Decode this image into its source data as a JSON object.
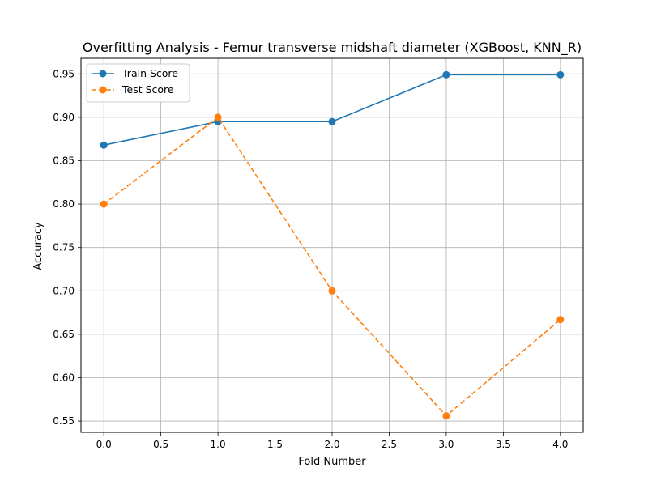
{
  "chart_data": {
    "type": "line",
    "title": "Overfitting Analysis - Femur transverse midshaft diameter (XGBoost, KNN_R)",
    "xlabel": "Fold Number",
    "ylabel": "Accuracy",
    "xlim": [
      -0.2,
      4.2
    ],
    "ylim": [
      0.537,
      0.968
    ],
    "x_ticks": [
      0.0,
      0.5,
      1.0,
      1.5,
      2.0,
      2.5,
      3.0,
      3.5,
      4.0
    ],
    "x_tick_labels": [
      "0.0",
      "0.5",
      "1.0",
      "1.5",
      "2.0",
      "2.5",
      "3.0",
      "3.5",
      "4.0"
    ],
    "y_ticks": [
      0.55,
      0.6,
      0.65,
      0.7,
      0.75,
      0.8,
      0.85,
      0.9,
      0.95
    ],
    "y_tick_labels": [
      "0.55",
      "0.60",
      "0.65",
      "0.70",
      "0.75",
      "0.80",
      "0.85",
      "0.90",
      "0.95"
    ],
    "grid": true,
    "legend_position": "top-left",
    "x": [
      0,
      1,
      2,
      3,
      4
    ],
    "series": [
      {
        "name": "Train Score",
        "values": [
          0.868,
          0.895,
          0.895,
          0.949,
          0.949
        ],
        "color": "#1f77b4",
        "dash": "solid",
        "marker": "circle"
      },
      {
        "name": "Test Score",
        "values": [
          0.8,
          0.9,
          0.7,
          0.556,
          0.667
        ],
        "color": "#ff7f0e",
        "dash": "dashed",
        "marker": "circle"
      }
    ]
  }
}
